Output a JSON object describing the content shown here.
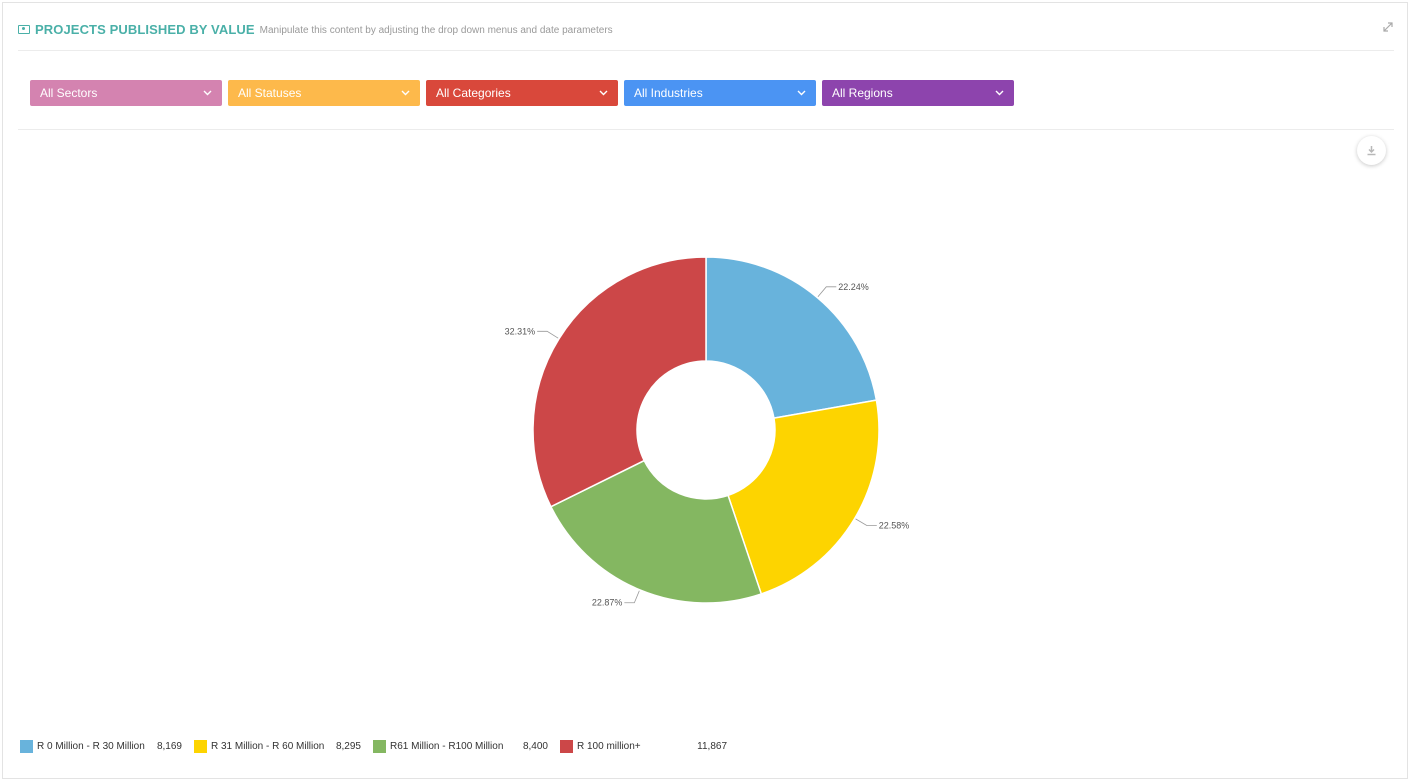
{
  "header": {
    "title": "PROJECTS PUBLISHED BY VALUE",
    "subtitle": "Manipulate this content by adjusting the drop down menus and date parameters",
    "title_icon": "money-icon",
    "expand_icon": "expand-icon",
    "accent_color": "#4ab0a8"
  },
  "filters": [
    {
      "label": "All Sectors",
      "color": "#d483b0"
    },
    {
      "label": "All Statuses",
      "color": "#fdb94b"
    },
    {
      "label": "All Categories",
      "color": "#d9483b"
    },
    {
      "label": "All Industries",
      "color": "#4b94f3"
    },
    {
      "label": "All Regions",
      "color": "#8d44ad"
    }
  ],
  "download_icon": "download-icon",
  "chart_data": {
    "type": "pie",
    "donut": true,
    "categories": [
      "R 0 Million - R 30 Million",
      "R 31 Million - R 60 Million",
      "R61 Million - R100 Million",
      "R 100 million+"
    ],
    "values": [
      8169,
      8295,
      8400,
      11867
    ],
    "value_labels": [
      "8,169",
      "8,295",
      "8,400",
      "11,867"
    ],
    "percent_labels": [
      "22.24%",
      "22.58%",
      "22.87%",
      "32.31%"
    ],
    "colors": [
      "#68b3dc",
      "#fdd400",
      "#84b761",
      "#cc4748"
    ],
    "legend_position": "bottom-left"
  }
}
